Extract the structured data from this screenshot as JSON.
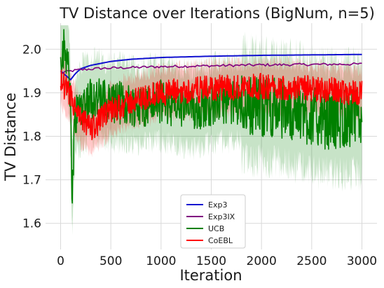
{
  "chart_data": {
    "type": "line",
    "title": "TV Distance over Iterations (BigNum, n=5)",
    "xlabel": "Iteration",
    "ylabel": "TV Distance",
    "xlim": [
      -150,
      3150
    ],
    "ylim": [
      1.54,
      2.06
    ],
    "x_ticks": [
      0,
      500,
      1000,
      1500,
      2000,
      2500,
      3000
    ],
    "x_tick_labels": [
      "0",
      "500",
      "1000",
      "1500",
      "2000",
      "2500",
      "3000"
    ],
    "y_ticks": [
      1.6,
      1.7,
      1.8,
      1.9,
      2.0
    ],
    "y_tick_labels": [
      "1.6",
      "1.7",
      "1.8",
      "1.9",
      "2.0"
    ],
    "grid": true,
    "legend_position": "lower-center",
    "series": [
      {
        "name": "Exp3",
        "color": "#1010d0",
        "x": [
          0,
          50,
          100,
          150,
          200,
          300,
          500,
          700,
          1000,
          1500,
          2000,
          2500,
          3000
        ],
        "y": [
          1.95,
          1.94,
          1.93,
          1.945,
          1.955,
          1.963,
          1.972,
          1.977,
          1.981,
          1.984,
          1.986,
          1.987,
          1.988
        ]
      },
      {
        "name": "Exp3IX",
        "color": "#800080",
        "x": [
          0,
          50,
          100,
          200,
          400,
          700,
          1000,
          1500,
          2000,
          2500,
          3000
        ],
        "y": [
          1.945,
          1.948,
          1.95,
          1.953,
          1.956,
          1.958,
          1.96,
          1.962,
          1.964,
          1.965,
          1.966
        ]
      },
      {
        "name": "UCB",
        "color": "#008000",
        "x": [
          0,
          50,
          80,
          100,
          110,
          120,
          135,
          150,
          200,
          300,
          500,
          800,
          1000,
          1300,
          1600,
          2000,
          2300,
          2600,
          2800,
          3000
        ],
        "y": [
          2.0,
          1.995,
          1.98,
          1.85,
          1.7,
          1.69,
          1.8,
          1.85,
          1.87,
          1.89,
          1.88,
          1.87,
          1.88,
          1.86,
          1.88,
          1.87,
          1.86,
          1.84,
          1.84,
          1.84
        ]
      },
      {
        "name": "CoEBL",
        "color": "#ff0000",
        "x": [
          0,
          50,
          100,
          150,
          200,
          250,
          300,
          350,
          400,
          500,
          700,
          1000,
          1300,
          1500,
          2000,
          2500,
          3000
        ],
        "y": [
          1.93,
          1.91,
          1.89,
          1.86,
          1.835,
          1.83,
          1.82,
          1.825,
          1.84,
          1.86,
          1.88,
          1.9,
          1.905,
          1.91,
          1.915,
          1.91,
          1.9
        ]
      }
    ]
  }
}
